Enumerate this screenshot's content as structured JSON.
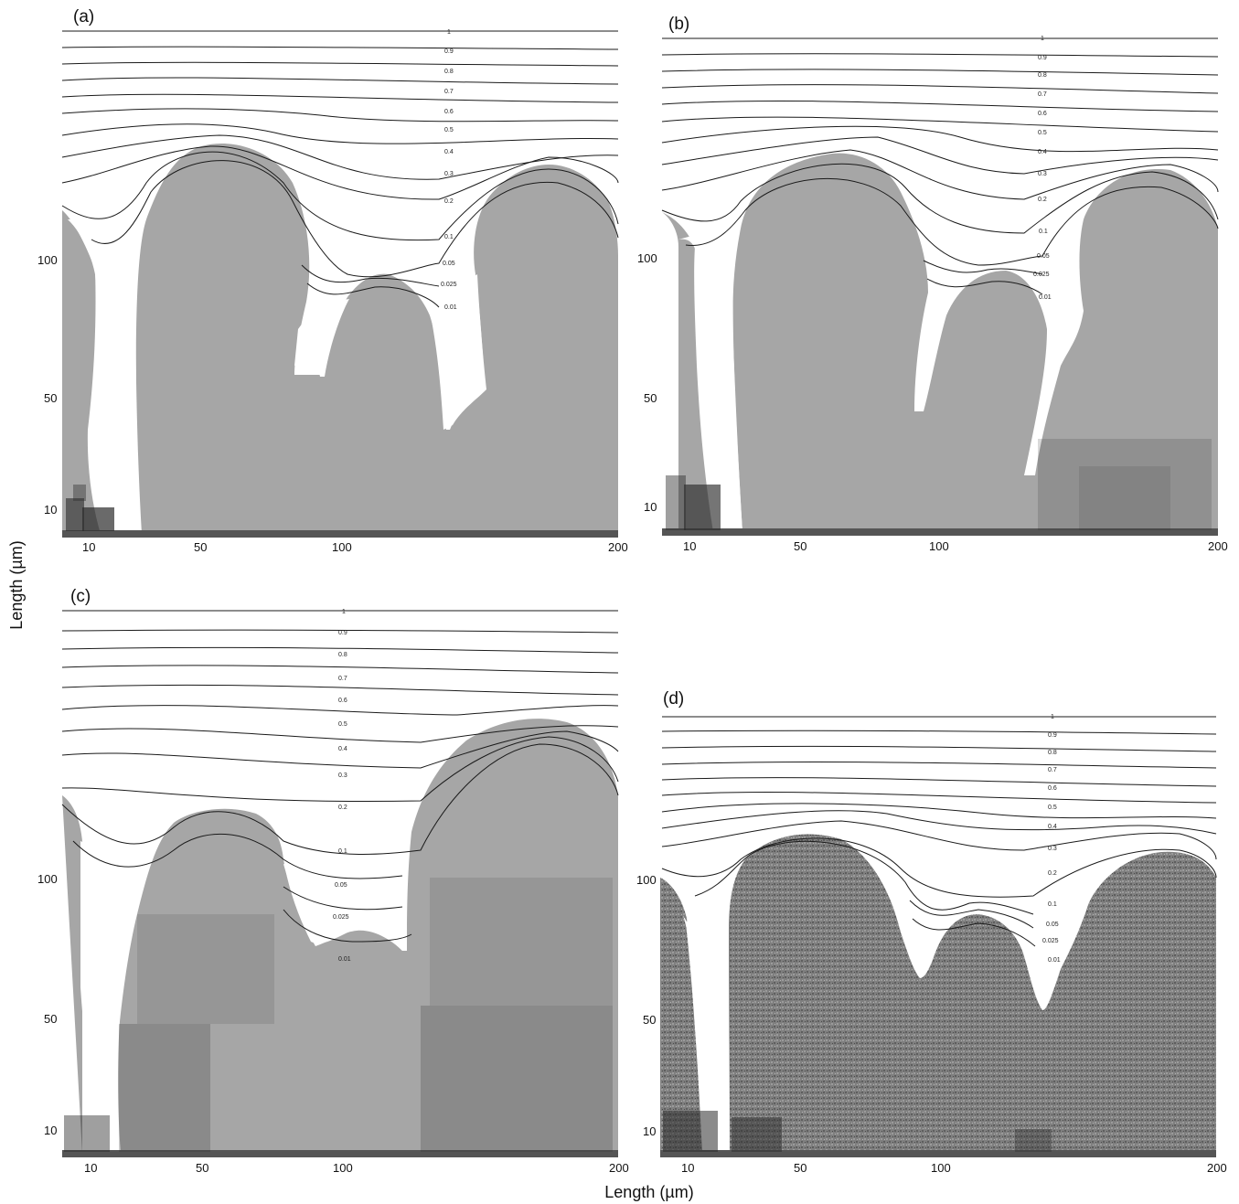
{
  "figure": {
    "x_axis_label": "Length (µm)",
    "y_axis_label": "Length (µm)",
    "panels": [
      {
        "label": "(a)",
        "x_ticks": [
          "10",
          "50",
          "100",
          "200"
        ],
        "y_ticks": [
          "10",
          "50",
          "100"
        ],
        "contour_levels": [
          "1",
          "0.9",
          "0.8",
          "0.7",
          "0.6",
          "0.5",
          "0.4",
          "0.3",
          "0.2",
          "0.1",
          "0.05",
          "0.025",
          "0.01"
        ]
      },
      {
        "label": "(b)",
        "x_ticks": [
          "10",
          "50",
          "100",
          "200"
        ],
        "y_ticks": [
          "10",
          "50",
          "100"
        ],
        "contour_levels": [
          "1",
          "0.9",
          "0.8",
          "0.7",
          "0.6",
          "0.5",
          "0.4",
          "0.3",
          "0.2",
          "0.1",
          "0.05",
          "0.025",
          "0.01"
        ]
      },
      {
        "label": "(c)",
        "x_ticks": [
          "10",
          "50",
          "100",
          "200"
        ],
        "y_ticks": [
          "10",
          "50",
          "100"
        ],
        "contour_levels": [
          "1",
          "0.9",
          "0.8",
          "0.7",
          "0.6",
          "0.5",
          "0.4",
          "0.3",
          "0.2",
          "0.1",
          "0.05",
          "0.025",
          "0.01"
        ]
      },
      {
        "label": "(d)",
        "x_ticks": [
          "10",
          "50",
          "100",
          "200"
        ],
        "y_ticks": [
          "10",
          "50",
          "100"
        ],
        "contour_levels": [
          "1",
          "0.9",
          "0.8",
          "0.7",
          "0.6",
          "0.5",
          "0.4",
          "0.3",
          "0.2",
          "0.1",
          "0.05",
          "0.025",
          "0.01"
        ]
      }
    ],
    "colors": {
      "colony": "#a6a6a6",
      "colony_dense": "#7f7f7f",
      "cells_dark": "#2b2b2b",
      "substrate": "#555555",
      "contour": "#1a1a1a"
    }
  }
}
